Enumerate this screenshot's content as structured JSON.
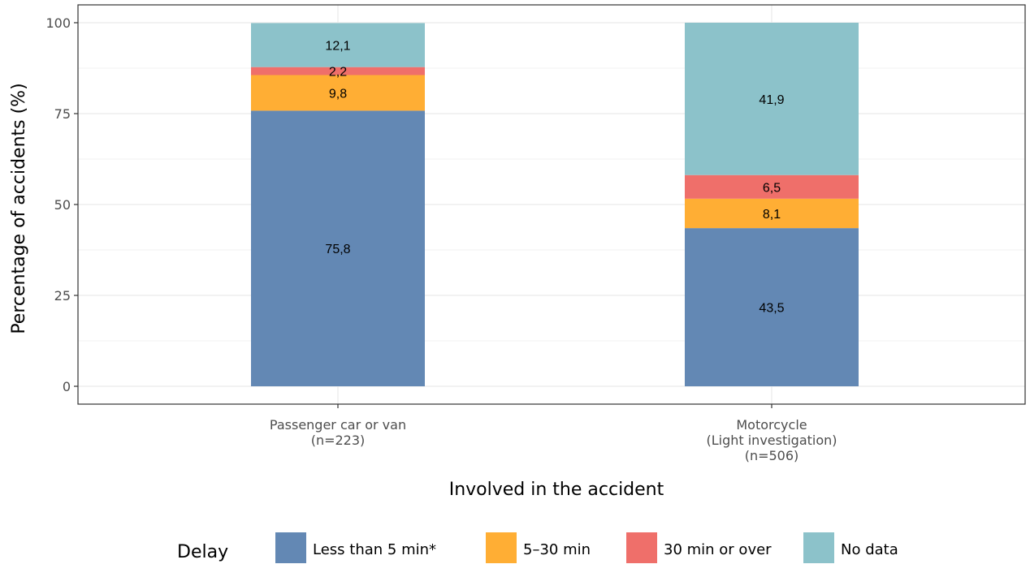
{
  "chart_data": {
    "type": "bar",
    "stacked": true,
    "categories": [
      [
        "Passenger car or van",
        "(n=223)"
      ],
      [
        "Motorcycle",
        "(Light investigation)",
        "(n=506)"
      ]
    ],
    "series": [
      {
        "name": "Less than 5 min*",
        "color": "#6388b4",
        "values": [
          75.8,
          43.5
        ],
        "labels": [
          "75,8",
          "43,5"
        ]
      },
      {
        "name": "5–30 min",
        "color": "#ffae34",
        "values": [
          9.8,
          8.1
        ],
        "labels": [
          "9,8",
          "8,1"
        ]
      },
      {
        "name": "30 min or over",
        "color": "#ef6f6a",
        "values": [
          2.2,
          6.5
        ],
        "labels": [
          "2,2",
          "6,5"
        ]
      },
      {
        "name": "No data",
        "color": "#8cc2ca",
        "values": [
          12.1,
          41.9
        ],
        "labels": [
          "12,1",
          "41,9"
        ]
      }
    ],
    "xlabel": "Involved in the accident",
    "ylabel": "Percentage of accidents (%)",
    "ylim": [
      0,
      100
    ],
    "yticks": [
      0,
      25,
      50,
      75,
      100
    ],
    "grid": true,
    "legend": {
      "title": "Delay",
      "position": "bottom"
    }
  }
}
